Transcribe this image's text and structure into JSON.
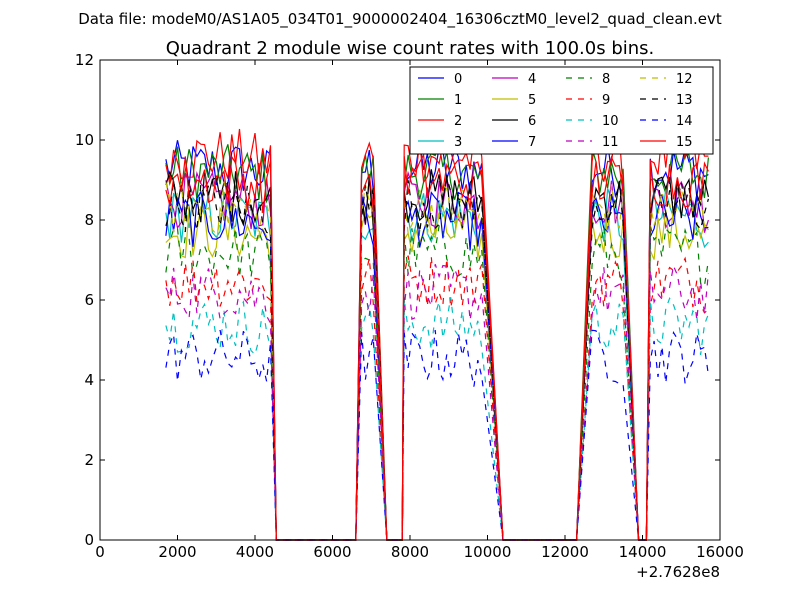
{
  "figure": {
    "suptitle": "Data file: modeM0/AS1A05_034T01_9000002404_16306cztM0_level2_quad_clean.evt",
    "offset_label": "+2.7628e8"
  },
  "chart_data": {
    "type": "line",
    "title": "Quadrant 2 module wise count rates with 100.0s bins.",
    "xlabel": "",
    "ylabel": "",
    "xlim": [
      0,
      16000
    ],
    "ylim": [
      0,
      12
    ],
    "x_offset": 276280000,
    "xticks": [
      0,
      2000,
      4000,
      6000,
      8000,
      10000,
      12000,
      14000,
      16000
    ],
    "xtick_labels": [
      "0",
      "2000",
      "4000",
      "6000",
      "8000",
      "10000",
      "12000",
      "14000",
      "16000"
    ],
    "yticks": [
      0,
      2,
      4,
      6,
      8,
      10,
      12
    ],
    "ytick_labels": [
      "0",
      "2",
      "4",
      "6",
      "8",
      "10",
      "12"
    ],
    "legend_position": "top-right",
    "segments": [
      {
        "x_start": 1700,
        "x_end": 4400,
        "rising_from": null,
        "falling_to": 4550
      },
      {
        "x_start": 6750,
        "x_end": 7100,
        "rising_from": 6600,
        "falling_to": 7400
      },
      {
        "x_start": 7850,
        "x_end": 9900,
        "rising_from": 7800,
        "falling_to": 10400
      },
      {
        "x_start": 12700,
        "x_end": 13500,
        "rising_from": 12300,
        "falling_to": 13900
      },
      {
        "x_start": 14200,
        "x_end": 15700,
        "rising_from": 14100,
        "falling_to": null
      }
    ],
    "zero_baseline": [
      [
        4550,
        6600
      ],
      [
        7400,
        7800
      ],
      [
        10400,
        12300
      ],
      [
        13900,
        14100
      ]
    ],
    "series": [
      {
        "name": "0",
        "color": "#0000ff",
        "dash": "solid",
        "level": 9.3
      },
      {
        "name": "1",
        "color": "#008000",
        "dash": "solid",
        "level": 9.2
      },
      {
        "name": "2",
        "color": "#ff0000",
        "dash": "solid",
        "level": 9.6
      },
      {
        "name": "3",
        "color": "#00bfbf",
        "dash": "solid",
        "level": 8.1
      },
      {
        "name": "4",
        "color": "#bf00bf",
        "dash": "solid",
        "level": 8.5
      },
      {
        "name": "5",
        "color": "#bfbf00",
        "dash": "solid",
        "level": 7.7
      },
      {
        "name": "6",
        "color": "#000000",
        "dash": "solid",
        "level": 8.6
      },
      {
        "name": "7",
        "color": "#0000ff",
        "dash": "solid",
        "level": 8.0
      },
      {
        "name": "8",
        "color": "#008000",
        "dash": "dashed",
        "level": 7.2
      },
      {
        "name": "9",
        "color": "#ff0000",
        "dash": "dashed",
        "level": 6.5
      },
      {
        "name": "10",
        "color": "#00bfbf",
        "dash": "dashed",
        "level": 5.4
      },
      {
        "name": "11",
        "color": "#bf00bf",
        "dash": "dashed",
        "level": 6.2
      },
      {
        "name": "12",
        "color": "#bfbf00",
        "dash": "dashed",
        "level": 8.3
      },
      {
        "name": "13",
        "color": "#000000",
        "dash": "dashed",
        "level": 8.4
      },
      {
        "name": "14",
        "color": "#0000ff",
        "dash": "dashed",
        "level": 4.6
      },
      {
        "name": "15",
        "color": "#ff0000",
        "dash": "solid",
        "level": 9.0
      }
    ]
  }
}
